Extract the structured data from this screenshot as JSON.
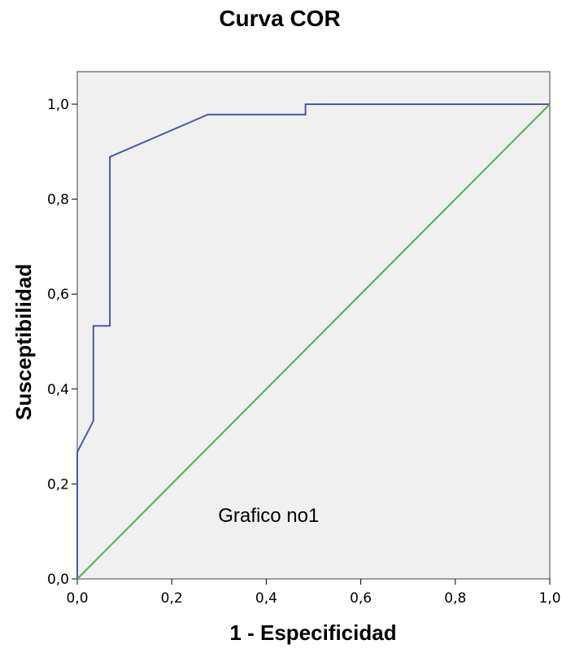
{
  "chart_data": {
    "type": "line",
    "title": "Curva COR",
    "xlabel": "1 - Especificidad",
    "ylabel": "Susceptibilidad",
    "xlim": [
      0,
      1
    ],
    "ylim": [
      0,
      1
    ],
    "xticks": [
      0,
      0.2,
      0.4,
      0.6,
      0.8,
      1.0
    ],
    "yticks": [
      0,
      0.2,
      0.4,
      0.6,
      0.8,
      1.0
    ],
    "xtick_labels": [
      "0,0",
      "0,2",
      "0,4",
      "0,6",
      "0,8",
      "1,0"
    ],
    "ytick_labels": [
      "0,0",
      "0,2",
      "0,4",
      "0,6",
      "0,8",
      "1,0"
    ],
    "grid": false,
    "background": "#f0f0f0",
    "series": [
      {
        "color": "#4a5aa8",
        "x": [
          0,
          0,
          0.034,
          0.034,
          0.069,
          0.069,
          0.276,
          0.483,
          0.483,
          1.0
        ],
        "y": [
          0,
          0.267,
          0.333,
          0.533,
          0.533,
          0.889,
          0.978,
          0.978,
          1.0,
          1.0
        ]
      },
      {
        "color": "#4db34d",
        "x": [
          0,
          1
        ],
        "y": [
          0,
          1
        ]
      }
    ],
    "annotations": [
      {
        "text": "Grafico no1",
        "x": 0.405,
        "y": 0.12
      }
    ]
  }
}
